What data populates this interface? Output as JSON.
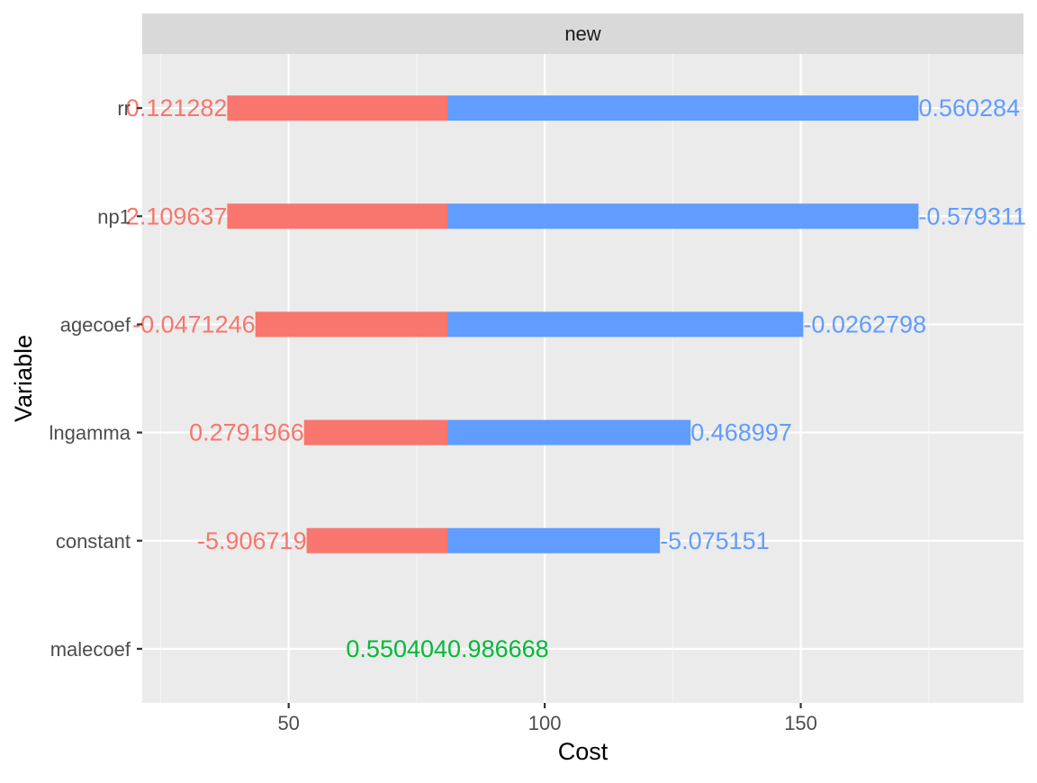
{
  "chart_data": {
    "type": "bar",
    "subtype": "tornado",
    "facet_label": "new",
    "xlabel": "Cost",
    "ylabel": "Variable",
    "xlim": [
      21.4,
      193.5
    ],
    "x_ticks": [
      50,
      100,
      150
    ],
    "x_tick_labels": [
      "50",
      "100",
      "150"
    ],
    "minor_x_ticks": [
      25,
      75,
      125,
      175
    ],
    "grid": true,
    "legend": "none",
    "base_value": 81,
    "categories": [
      "rr",
      "np1",
      "agecoef",
      "lngamma",
      "constant",
      "malecoef"
    ],
    "series": [
      {
        "color": "#F8766D",
        "starts": [
          38,
          38,
          43.5,
          53,
          53.5,
          81
        ],
        "ends": [
          81,
          81,
          81,
          81,
          81,
          81
        ],
        "labels": [
          "0.121282",
          "2.109637",
          "-0.0471246",
          "0.2791966",
          "-5.906719",
          "0.550404"
        ]
      },
      {
        "color": "#619CFF",
        "starts": [
          81,
          81,
          81,
          81,
          81,
          81
        ],
        "ends": [
          173,
          173,
          150.5,
          128.5,
          122.5,
          81
        ],
        "labels": [
          "0.560284",
          "-0.579311",
          "-0.0262798",
          "0.468997",
          "-5.075151",
          "0.986668"
        ]
      }
    ],
    "zero_width_label_color": "#00BA38"
  },
  "colors": {
    "panel_bg": "#EBEBEB",
    "strip_bg": "#D9D9D9",
    "grid_major": "#FFFFFF",
    "axis_text": "#4D4D4D",
    "title_text": "#000000",
    "tick_mark": "#333333"
  }
}
